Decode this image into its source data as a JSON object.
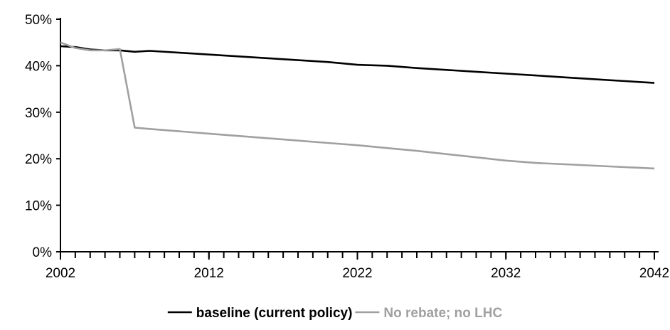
{
  "chart_data": {
    "type": "line",
    "title": "",
    "xlabel": "",
    "ylabel": "",
    "xlim": [
      2002,
      2042
    ],
    "ylim": [
      0,
      50
    ],
    "y_unit": "%",
    "grid": false,
    "legend_position": "bottom",
    "x_ticks": [
      2002,
      2012,
      2022,
      2032,
      2042
    ],
    "x_tick_labels": [
      "2002",
      "2012",
      "2022",
      "2032",
      "2042"
    ],
    "y_ticks": [
      0,
      10,
      20,
      30,
      40,
      50
    ],
    "y_tick_labels": [
      "0%",
      "10%",
      "20%",
      "30%",
      "40%",
      "50%"
    ],
    "series": [
      {
        "name": "baseline (current policy)",
        "color": "#000000",
        "x": [
          2002,
          2003,
          2004,
          2005,
          2006,
          2007,
          2008,
          2010,
          2012,
          2014,
          2016,
          2018,
          2020,
          2022,
          2024,
          2026,
          2028,
          2030,
          2032,
          2034,
          2036,
          2038,
          2040,
          2042
        ],
        "y": [
          44.2,
          44.0,
          43.5,
          43.3,
          43.3,
          43.0,
          43.2,
          42.8,
          42.4,
          42.0,
          41.6,
          41.2,
          40.8,
          40.2,
          40.0,
          39.5,
          39.1,
          38.7,
          38.3,
          37.9,
          37.5,
          37.1,
          36.7,
          36.3
        ]
      },
      {
        "name": "No rebate; no LHC",
        "color": "#a0a0a0",
        "x": [
          2002,
          2003,
          2004,
          2005,
          2006,
          2007,
          2008,
          2010,
          2012,
          2014,
          2016,
          2018,
          2020,
          2022,
          2024,
          2026,
          2028,
          2030,
          2032,
          2034,
          2036,
          2038,
          2040,
          2042
        ],
        "y": [
          45.0,
          43.8,
          43.3,
          43.3,
          43.6,
          26.7,
          26.4,
          25.9,
          25.4,
          24.9,
          24.4,
          23.9,
          23.4,
          22.9,
          22.3,
          21.7,
          21.0,
          20.3,
          19.6,
          19.1,
          18.8,
          18.5,
          18.2,
          17.9
        ]
      }
    ]
  }
}
